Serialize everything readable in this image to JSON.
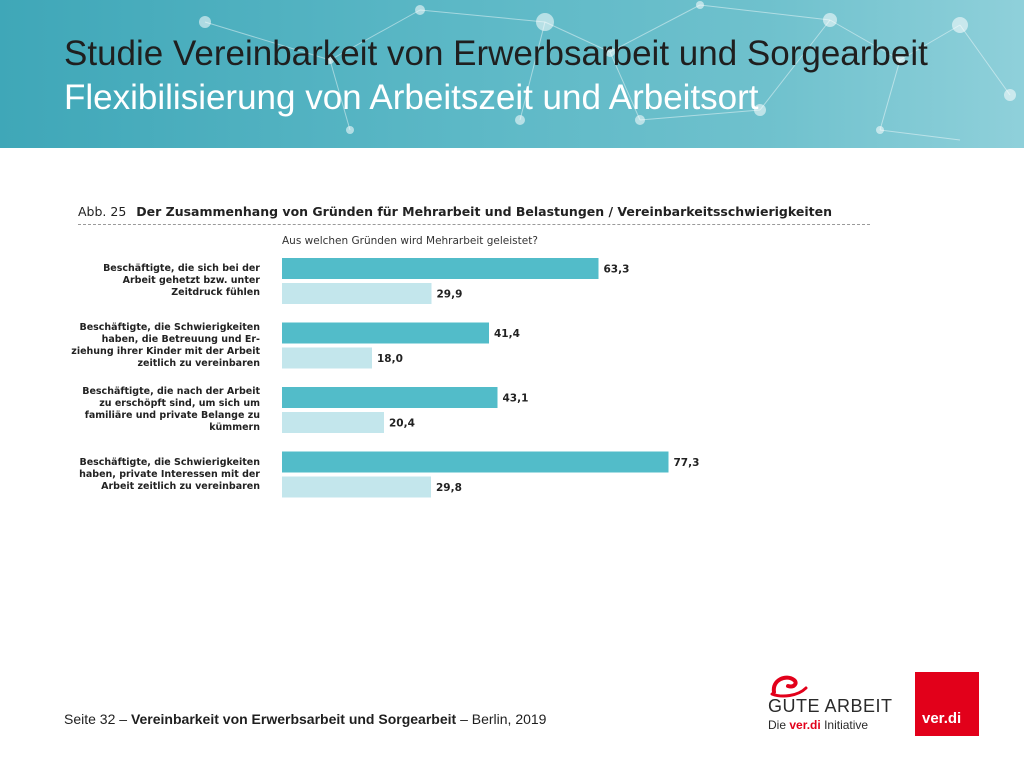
{
  "header": {
    "title_line1": "Studie Vereinbarkeit von Erwerbsarbeit und Sorgearbeit",
    "title_line2": "Flexibilisierung von Arbeitszeit und Arbeitsort"
  },
  "figure": {
    "number": "Abb. 25",
    "caption": "Der Zusammenhang von Gründen für Mehrarbeit und Belastungen / Vereinbarkeitsschwierigkeiten",
    "question": "Aus welchen Gründen wird Mehrarbeit geleistet?"
  },
  "chart_data": {
    "type": "bar",
    "orientation": "horizontal",
    "categories": [
      "Beschäftigte, die sich bei der\nArbeit gehetzt bzw. unter\nZeitdruck fühlen",
      "Beschäftigte, die Schwierigkeiten\nhaben, die Betreuung und Er-\nziehung ihrer Kinder mit der Arbeit\nzeitlich zu vereinbaren",
      "Beschäftigte, die nach der Arbeit\nzu erschöpft sind, um sich um\nfamiliäre und private Belange zu\nkümmern",
      "Beschäftigte, die Schwierigkeiten\nhaben, private Interessen mit der\nArbeit zeitlich zu vereinbaren"
    ],
    "series": [
      {
        "values": [
          63.3,
          41.4,
          43.1,
          77.3
        ],
        "labels": [
          "63,3",
          "41,4",
          "43,1",
          "77,3"
        ],
        "color": "#52bcc9"
      },
      {
        "values": [
          29.9,
          18.0,
          20.4,
          29.8
        ],
        "labels": [
          "29,9",
          "18,0",
          "20,4",
          "29,8"
        ],
        "color": "#c3e6ec"
      }
    ],
    "xlim": [
      0,
      100
    ],
    "grid": false,
    "legend": "none"
  },
  "footer": {
    "page": "Seite 32",
    "sep1": "–",
    "study": "Vereinbarkeit von Erwerbsarbeit und Sorgearbeit",
    "sep2": "–",
    "place_year": "Berlin, 2019"
  },
  "logos": {
    "gute_arbeit": "GUTE ARBEIT",
    "die": "Die",
    "verdi_inline": "ver.di",
    "initiative": "Initiative",
    "verdi": "ver.di"
  },
  "colors": {
    "header_teal": "#3fa7b8",
    "bar_dark": "#52bcc9",
    "bar_light": "#c3e6ec",
    "verdi_red": "#e2001a"
  }
}
